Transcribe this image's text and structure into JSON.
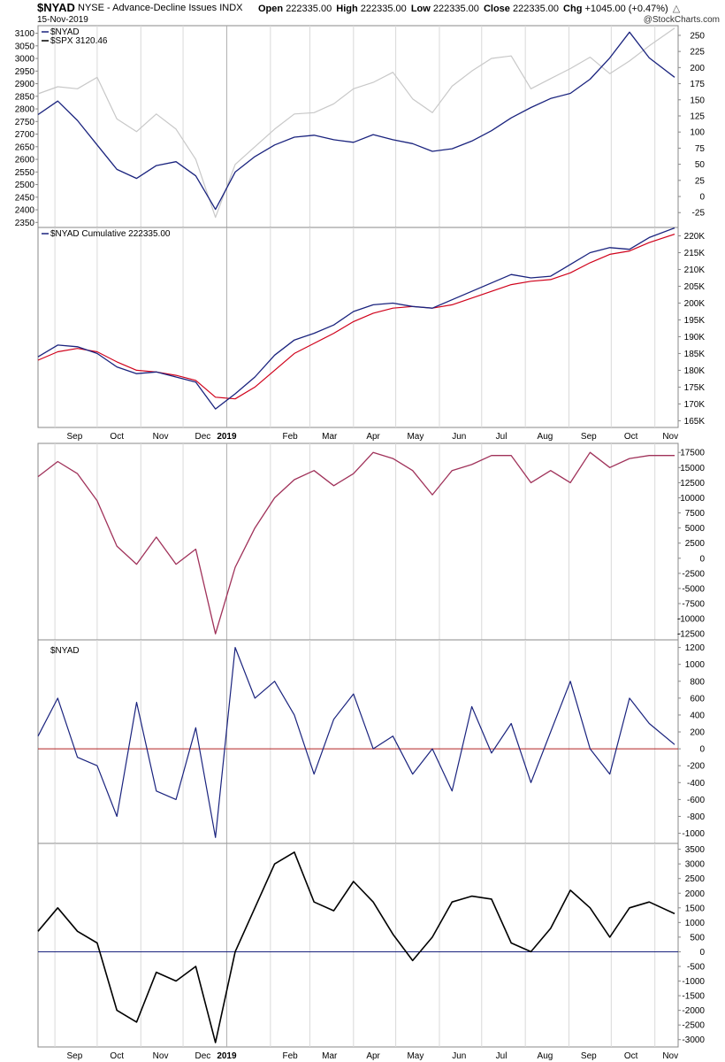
{
  "header": {
    "symbol": "$NYAD",
    "description": "NYSE - Advance-Decline Issues",
    "exchange": "INDX",
    "date": "15-Nov-2019",
    "credit": "@StockCharts.com",
    "open_label": "Open",
    "open": "222335.00",
    "high_label": "High",
    "high": "222335.00",
    "low_label": "Low",
    "low": "222335.00",
    "close_label": "Close",
    "close": "222335.00",
    "chg_label": "Chg",
    "chg": "+1045.00 (+0.47%)",
    "chg_arrow": "triangle-up-icon"
  },
  "colors": {
    "navy": "#1a237e",
    "spx_gray": "#c8c8c8",
    "ma_red": "#d0021b",
    "crimson": "#a0325a",
    "black": "#000000",
    "zero_red": "#b22222",
    "zero_blue": "#1a237e",
    "grid": "#d9d9d9"
  },
  "month_labels": [
    "Sep",
    "Oct",
    "Nov",
    "Dec",
    "2019",
    "Feb",
    "Mar",
    "Apr",
    "May",
    "Jun",
    "Jul",
    "Aug",
    "Sep",
    "Oct",
    "Nov"
  ],
  "chart_data": [
    {
      "type": "line",
      "panel": "price-overlay",
      "legend": [
        "$NYAD",
        "$SPX 3120.46"
      ],
      "left_axis": {
        "label": "$SPX",
        "ticks": [
          3100,
          3050,
          3000,
          2950,
          2900,
          2850,
          2800,
          2750,
          2700,
          2650,
          2600,
          2550,
          2500,
          2450,
          2400,
          2350
        ],
        "range": [
          2330,
          3130
        ]
      },
      "right_axis": {
        "label": "$NYAD",
        "ticks": [
          250,
          225,
          200,
          175,
          150,
          125,
          100,
          75,
          50,
          25,
          0,
          -25
        ],
        "range": [
          -48,
          265
        ]
      },
      "x": [
        "2018-08-20",
        "2018-09-03",
        "2018-09-17",
        "2018-10-01",
        "2018-10-15",
        "2018-10-29",
        "2018-11-12",
        "2018-11-26",
        "2018-12-10",
        "2018-12-24",
        "2019-01-07",
        "2019-01-21",
        "2019-02-04",
        "2019-02-18",
        "2019-03-04",
        "2019-03-18",
        "2019-04-01",
        "2019-04-15",
        "2019-04-29",
        "2019-05-13",
        "2019-05-27",
        "2019-06-10",
        "2019-06-24",
        "2019-07-08",
        "2019-07-22",
        "2019-08-05",
        "2019-08-19",
        "2019-09-02",
        "2019-09-16",
        "2019-09-30",
        "2019-10-14",
        "2019-10-28",
        "2019-11-15"
      ],
      "series": [
        {
          "name": "$NYAD",
          "axis": "right",
          "values": [
            127,
            148,
            118,
            80,
            42,
            28,
            48,
            54,
            32,
            -20,
            38,
            62,
            80,
            92,
            95,
            88,
            84,
            96,
            88,
            82,
            70,
            74,
            86,
            102,
            122,
            138,
            152,
            160,
            182,
            215,
            255,
            215,
            185
          ]
        },
        {
          "name": "$SPX",
          "axis": "left",
          "values": [
            2860,
            2888,
            2880,
            2925,
            2760,
            2710,
            2780,
            2720,
            2600,
            2370,
            2580,
            2650,
            2720,
            2780,
            2785,
            2820,
            2880,
            2905,
            2945,
            2840,
            2785,
            2890,
            2950,
            3000,
            3010,
            2880,
            2920,
            2960,
            3005,
            2940,
            2990,
            3050,
            3120
          ]
        }
      ]
    },
    {
      "type": "line",
      "panel": "cumulative",
      "legend": [
        "$NYAD Cumulative 222335.00"
      ],
      "right_axis": {
        "ticks": [
          "220K",
          "215K",
          "210K",
          "205K",
          "200K",
          "195K",
          "190K",
          "185K",
          "180K",
          "175K",
          "170K",
          "165K"
        ],
        "range": [
          163000,
          222500
        ]
      },
      "x": [
        "2018-08-20",
        "2018-09-03",
        "2018-09-17",
        "2018-10-01",
        "2018-10-15",
        "2018-10-29",
        "2018-11-12",
        "2018-11-26",
        "2018-12-10",
        "2018-12-24",
        "2019-01-07",
        "2019-01-21",
        "2019-02-04",
        "2019-02-18",
        "2019-03-04",
        "2019-03-18",
        "2019-04-01",
        "2019-04-15",
        "2019-04-29",
        "2019-05-13",
        "2019-05-27",
        "2019-06-10",
        "2019-06-24",
        "2019-07-08",
        "2019-07-22",
        "2019-08-05",
        "2019-08-19",
        "2019-09-02",
        "2019-09-16",
        "2019-09-30",
        "2019-10-14",
        "2019-10-28",
        "2019-11-15"
      ],
      "series": [
        {
          "name": "$NYAD Cumulative",
          "values": [
            184000,
            187500,
            187000,
            185000,
            181000,
            179000,
            179500,
            178000,
            176500,
            168500,
            173000,
            178000,
            184500,
            189000,
            191000,
            193500,
            197500,
            199500,
            200000,
            199000,
            198500,
            201000,
            203500,
            206000,
            208500,
            207500,
            208000,
            211500,
            215000,
            216500,
            216000,
            219500,
            222335
          ]
        },
        {
          "name": "moving average",
          "values": [
            183000,
            185500,
            186500,
            185500,
            182500,
            180000,
            179500,
            178500,
            177000,
            172000,
            171500,
            175000,
            180000,
            185000,
            188000,
            191000,
            194500,
            197000,
            198500,
            199000,
            198500,
            199500,
            201500,
            203500,
            205500,
            206500,
            207000,
            209000,
            212000,
            214500,
            215500,
            218000,
            220500
          ]
        }
      ]
    },
    {
      "type": "line",
      "panel": "oscillator",
      "right_axis": {
        "ticks": [
          17500,
          15000,
          12500,
          10000,
          7500,
          5000,
          2500,
          0,
          -2500,
          -5000,
          -7500,
          -10000,
          -12500
        ],
        "range": [
          -13500,
          19000
        ]
      },
      "x": [
        "2018-08-20",
        "2018-09-03",
        "2018-09-17",
        "2018-10-01",
        "2018-10-15",
        "2018-10-29",
        "2018-11-12",
        "2018-11-26",
        "2018-12-10",
        "2018-12-24",
        "2019-01-07",
        "2019-01-21",
        "2019-02-04",
        "2019-02-18",
        "2019-03-04",
        "2019-03-18",
        "2019-04-01",
        "2019-04-15",
        "2019-04-29",
        "2019-05-13",
        "2019-05-27",
        "2019-06-10",
        "2019-06-24",
        "2019-07-08",
        "2019-07-22",
        "2019-08-05",
        "2019-08-19",
        "2019-09-02",
        "2019-09-16",
        "2019-09-30",
        "2019-10-14",
        "2019-10-28",
        "2019-11-15"
      ],
      "series": [
        {
          "values": [
            13500,
            16000,
            14000,
            9500,
            2000,
            -1000,
            3500,
            -1000,
            1500,
            -12500,
            -1500,
            5000,
            10000,
            13000,
            14500,
            12000,
            14000,
            17500,
            16500,
            14500,
            10500,
            14500,
            15500,
            17000,
            17000,
            12500,
            14500,
            12500,
            17500,
            15000,
            16500,
            17000,
            17000
          ]
        }
      ]
    },
    {
      "type": "line",
      "panel": "breadth-net",
      "legend": [
        "$NYAD"
      ],
      "right_axis": {
        "ticks": [
          1200,
          1000,
          800,
          600,
          400,
          200,
          0,
          -200,
          -400,
          -600,
          -800,
          -1000
        ],
        "range": [
          -1120,
          1290
        ]
      },
      "zero_line": 0,
      "x": [
        "2018-08-20",
        "2018-09-03",
        "2018-09-17",
        "2018-10-01",
        "2018-10-15",
        "2018-10-29",
        "2018-11-12",
        "2018-11-26",
        "2018-12-10",
        "2018-12-24",
        "2019-01-07",
        "2019-01-21",
        "2019-02-04",
        "2019-02-18",
        "2019-03-04",
        "2019-03-18",
        "2019-04-01",
        "2019-04-15",
        "2019-04-29",
        "2019-05-13",
        "2019-05-27",
        "2019-06-10",
        "2019-06-24",
        "2019-07-08",
        "2019-07-22",
        "2019-08-05",
        "2019-08-19",
        "2019-09-02",
        "2019-09-16",
        "2019-09-30",
        "2019-10-14",
        "2019-10-28",
        "2019-11-15"
      ],
      "series": [
        {
          "values": [
            150,
            600,
            -100,
            -200,
            -800,
            550,
            -500,
            -600,
            250,
            -1050,
            1200,
            600,
            800,
            400,
            -300,
            350,
            650,
            0,
            150,
            -300,
            0,
            -500,
            500,
            -50,
            300,
            -400,
            200,
            800,
            0,
            -300,
            600,
            300,
            50
          ]
        }
      ]
    },
    {
      "type": "line",
      "panel": "smoothed",
      "right_axis": {
        "ticks": [
          3500,
          3000,
          2500,
          2000,
          1500,
          1000,
          500,
          0,
          -500,
          -1000,
          -1500,
          -2000,
          -2500,
          -3000
        ],
        "range": [
          -3250,
          3700
        ]
      },
      "zero_line": 0,
      "x": [
        "2018-08-20",
        "2018-09-03",
        "2018-09-17",
        "2018-10-01",
        "2018-10-15",
        "2018-10-29",
        "2018-11-12",
        "2018-11-26",
        "2018-12-10",
        "2018-12-24",
        "2019-01-07",
        "2019-01-21",
        "2019-02-04",
        "2019-02-18",
        "2019-03-04",
        "2019-03-18",
        "2019-04-01",
        "2019-04-15",
        "2019-04-29",
        "2019-05-13",
        "2019-05-27",
        "2019-06-10",
        "2019-06-24",
        "2019-07-08",
        "2019-07-22",
        "2019-08-05",
        "2019-08-19",
        "2019-09-02",
        "2019-09-16",
        "2019-09-30",
        "2019-10-14",
        "2019-10-28",
        "2019-11-15"
      ],
      "series": [
        {
          "values": [
            700,
            1500,
            700,
            300,
            -2000,
            -2400,
            -700,
            -1000,
            -500,
            -3100,
            0,
            1500,
            3000,
            3400,
            1700,
            1400,
            2400,
            1700,
            600,
            -300,
            500,
            1700,
            1900,
            1800,
            300,
            0,
            800,
            2100,
            1500,
            500,
            1500,
            1700,
            1300
          ]
        }
      ]
    }
  ]
}
